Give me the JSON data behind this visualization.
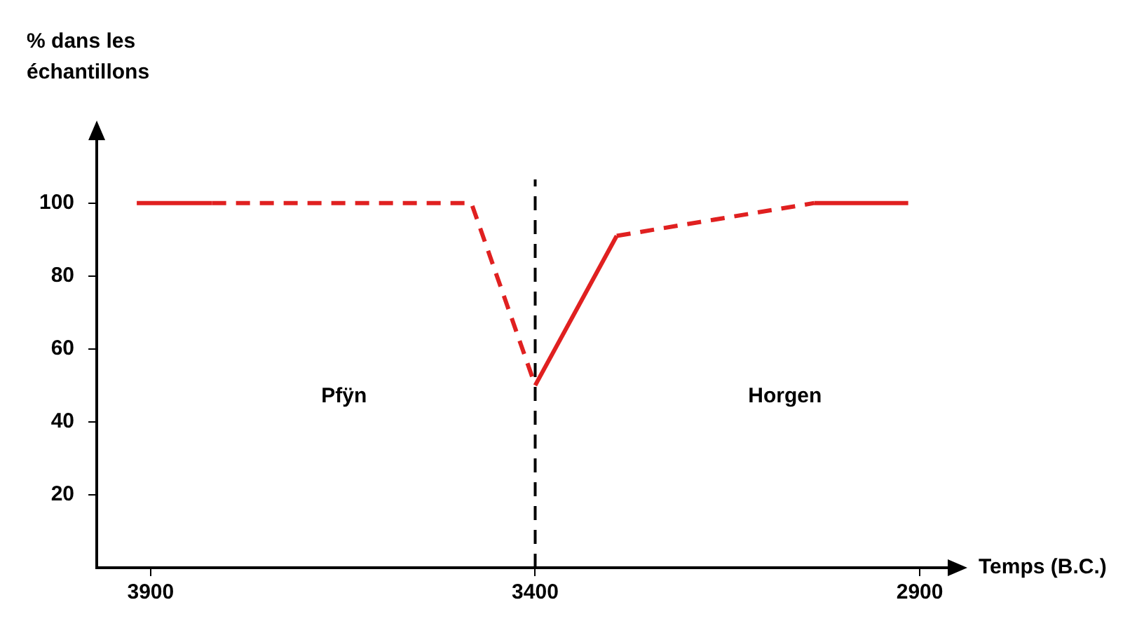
{
  "chart_data": {
    "type": "line",
    "xlabel": "Temps (B.C.)",
    "ylabel": "% dans les échantillons",
    "xlim": [
      3970,
      2860
    ],
    "xticks": [
      3900,
      3400,
      2900
    ],
    "ylim": [
      0,
      118
    ],
    "yticks": [
      20,
      40,
      60,
      80,
      100
    ],
    "series": [
      {
        "color": "#e02020",
        "line_style": "solid",
        "x": [
          3918,
          3820
        ],
        "values": [
          100,
          100
        ]
      },
      {
        "color": "#e02020",
        "line_style": "dashed",
        "x": [
          3820,
          3483,
          3400
        ],
        "values": [
          100,
          100,
          50
        ]
      },
      {
        "color": "#e02020",
        "line_style": "solid",
        "x": [
          3400,
          3294
        ],
        "values": [
          50,
          91
        ]
      },
      {
        "color": "#e02020",
        "line_style": "dashed",
        "x": [
          3294,
          3037
        ],
        "values": [
          91,
          100
        ]
      },
      {
        "color": "#e02020",
        "line_style": "solid",
        "x": [
          3037,
          2915
        ],
        "values": [
          100,
          100
        ]
      }
    ],
    "ref_lines": [
      {
        "axis": "x",
        "value": 3400,
        "color": "#000000",
        "line_style": "dashed"
      }
    ],
    "annotations": [
      "Pfÿn",
      "Horgen"
    ],
    "grid": false,
    "legend": false
  }
}
